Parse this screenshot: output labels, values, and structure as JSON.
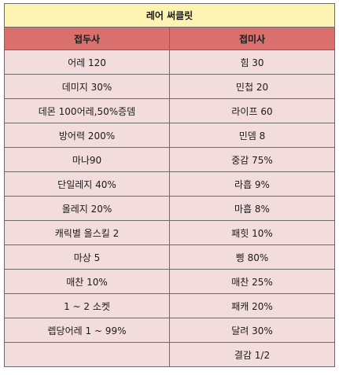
{
  "table": {
    "title": "레어 써클릿",
    "headers": [
      "접두사",
      "접미사"
    ],
    "rows": [
      [
        "어레 120",
        "힘 30"
      ],
      [
        "데미지 30%",
        "민첩 20"
      ],
      [
        "데몬 100어레,50%증뎀",
        "라이프 60"
      ],
      [
        "방어력 200%",
        "민뎀 8"
      ],
      [
        "마나90",
        "중감 75%"
      ],
      [
        "단일레지 40%",
        "라흡 9%"
      ],
      [
        "올레지 20%",
        "마흡 8%"
      ],
      [
        "캐릭별 올스킬 2",
        "패힛 10%"
      ],
      [
        "마상 5",
        "삥 80%"
      ],
      [
        "매찬 10%",
        "매찬 25%"
      ],
      [
        "1 ~ 2 소켓",
        "패캐 20%"
      ],
      [
        "렙당어레 1 ~ 99%",
        "달려 30%"
      ],
      [
        "",
        "결감 1/2"
      ]
    ]
  },
  "colors": {
    "title_bg": "#fdf3b3",
    "header_bg": "#d9706e",
    "row_bg": "#f3dcdc",
    "border": "#6b6b6b"
  }
}
